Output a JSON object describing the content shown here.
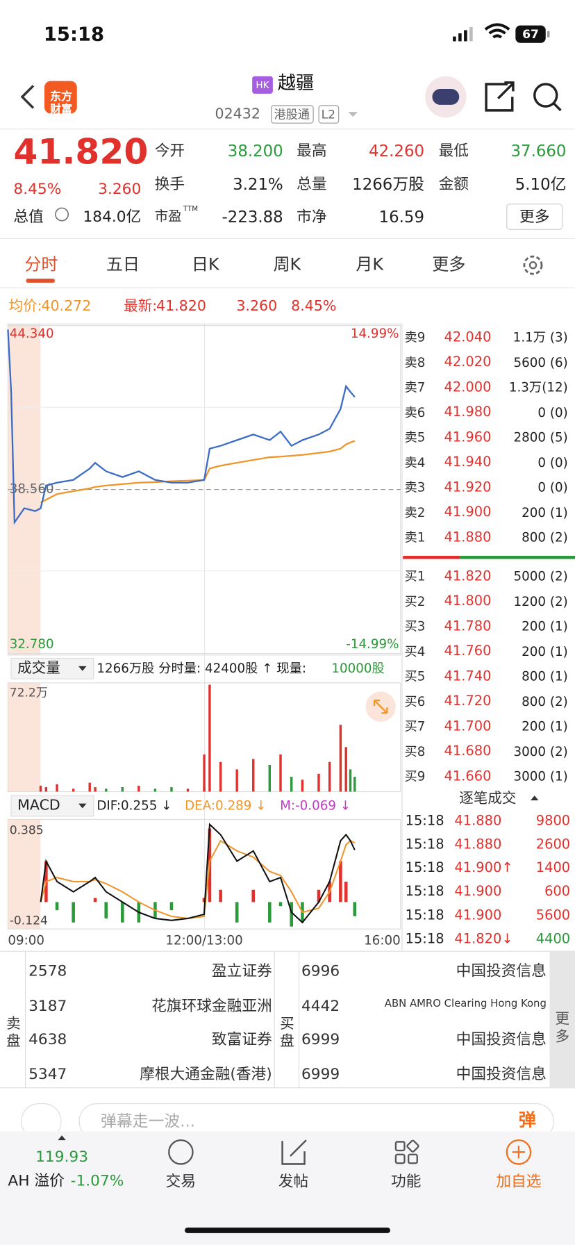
{
  "status_bar": {
    "time": "15:18",
    "battery": "67"
  },
  "header": {
    "logo": "东方财富",
    "badge": "HK",
    "name": "越疆",
    "code": "02432",
    "tags": [
      "港股通",
      "L2"
    ]
  },
  "quote": {
    "price": "41.820",
    "change_pct": "8.45%",
    "change": "3.260",
    "market_cap_label": "总值",
    "market_cap": "184.0亿",
    "fields": [
      {
        "label": "今开",
        "value": "38.200",
        "color": "#2a9a3a"
      },
      {
        "label": "最高",
        "value": "42.260",
        "color": "#e0312d"
      },
      {
        "label": "最低",
        "value": "37.660",
        "color": "#2a9a3a"
      },
      {
        "label": "换手",
        "value": "3.21%",
        "color": "#222222"
      },
      {
        "label": "总量",
        "value": "1266万股",
        "color": "#222222"
      },
      {
        "label": "金额",
        "value": "5.10亿",
        "color": "#222222"
      },
      {
        "label": "市盈",
        "sup": "TTM",
        "value": "-223.88",
        "color": "#222222"
      },
      {
        "label": "市净",
        "value": "16.59",
        "color": "#222222"
      }
    ],
    "more": "更多"
  },
  "tabs": [
    "分时",
    "五日",
    "日K",
    "周K",
    "月K",
    "更多"
  ],
  "info": [
    {
      "text": "均价:",
      "color": "#f0952a"
    },
    {
      "text": "40.272",
      "color": "#f0952a"
    },
    {
      "text": "最新:",
      "color": "#e0312d"
    },
    {
      "text": "41.820",
      "color": "#e0312d"
    },
    {
      "text": "3.260",
      "color": "#e0312d"
    },
    {
      "text": "8.45%",
      "color": "#e0312d"
    }
  ],
  "volume_header": {
    "selector": "成交量",
    "text": "1266万股 分时量: 42400股 ↑ 现量:",
    "current": "10000股"
  },
  "macd_header": {
    "selector": "MACD",
    "dif": "DIF:0.255 ↓",
    "dea": "DEA:0.289 ↓",
    "m": "M:-0.069 ↓"
  },
  "order_book": {
    "asks": [
      [
        "卖9",
        "42.040",
        "1.1万 (3)"
      ],
      [
        "卖8",
        "42.020",
        "5600 (6)"
      ],
      [
        "卖7",
        "42.000",
        "1.3万(12)"
      ],
      [
        "卖6",
        "41.980",
        "0 (0)"
      ],
      [
        "卖5",
        "41.960",
        "2800 (5)"
      ],
      [
        "卖4",
        "41.940",
        "0 (0)"
      ],
      [
        "卖3",
        "41.920",
        "0 (0)"
      ],
      [
        "卖2",
        "41.900",
        "200 (1)"
      ],
      [
        "卖1",
        "41.880",
        "800 (2)"
      ]
    ],
    "bids": [
      [
        "买1",
        "41.820",
        "5000 (2)"
      ],
      [
        "买2",
        "41.800",
        "1200 (2)"
      ],
      [
        "买3",
        "41.780",
        "200 (1)"
      ],
      [
        "买4",
        "41.760",
        "200 (1)"
      ],
      [
        "买5",
        "41.740",
        "800 (1)"
      ],
      [
        "买6",
        "41.720",
        "800 (2)"
      ],
      [
        "买7",
        "41.700",
        "200 (1)"
      ],
      [
        "买8",
        "41.680",
        "3000 (2)"
      ],
      [
        "买9",
        "41.660",
        "3000 (1)"
      ]
    ]
  },
  "trades": {
    "title": "逐笔成交",
    "rows": [
      [
        "15:18",
        "41.880",
        "9800"
      ],
      [
        "15:18",
        "41.880",
        "2600"
      ],
      [
        "15:18",
        "41.900↑",
        "1400"
      ],
      [
        "15:18",
        "41.900",
        "600"
      ],
      [
        "15:18",
        "41.900",
        "5600"
      ],
      [
        "15:18",
        "41.820↓",
        "4400"
      ]
    ]
  },
  "brokers": {
    "sell_label": "卖盘",
    "buy_label": "买盘",
    "more": "更多",
    "sell": [
      [
        "2578",
        "盈立证券"
      ],
      [
        "3187",
        "花旗环球金融亚洲"
      ],
      [
        "4638",
        "致富证券"
      ],
      [
        "5347",
        "摩根大通金融(香港)"
      ]
    ],
    "buy": [
      [
        "6996",
        "中国投资信息"
      ],
      [
        "4442",
        "ABN AMRO Clearing Hong Kong"
      ],
      [
        "6999",
        "中国投资信息"
      ],
      [
        "6999",
        "中国投资信息"
      ]
    ]
  },
  "comment": {
    "placeholder": "弹幕走一波...",
    "button": "弹"
  },
  "bottom_nav": {
    "ah_price": "119.93",
    "ah_label": "AH 溢价",
    "ah_premium": "-1.07%",
    "items": [
      "交易",
      "发帖",
      "功能",
      "加自选"
    ]
  },
  "chart_data": [
    {
      "type": "line",
      "xlim": [
        "09:00",
        "16:00"
      ],
      "x": [
        "09:00",
        "09:03",
        "09:06",
        "09:15",
        "09:25",
        "09:30",
        "09:35",
        "09:45",
        "10:00",
        "10:15",
        "10:20",
        "10:30",
        "10:45",
        "11:00",
        "11:15",
        "11:30",
        "11:45",
        "12:00",
        "13:00",
        "13:05",
        "13:15",
        "13:30",
        "13:45",
        "14:00",
        "14:10",
        "14:20",
        "14:30",
        "14:45",
        "14:55",
        "15:05",
        "15:10",
        "15:14",
        "15:18"
      ],
      "ylim": [
        32.78,
        44.34
      ],
      "yticks": [
        {
          "value": 44.34,
          "label": "44.340"
        },
        {
          "value": 38.56,
          "label": "38.560"
        },
        {
          "value": 32.78,
          "label": "32.780"
        }
      ],
      "y2lim": [
        -14.99,
        14.99
      ],
      "y2ticks": [
        {
          "value": 14.99,
          "label": "14.99%"
        },
        {
          "value": -14.99,
          "label": "-14.99%"
        }
      ],
      "series": [
        {
          "color": "#3a6cc6",
          "values": [
            44.2,
            42.0,
            37.4,
            37.9,
            37.8,
            37.9,
            38.7,
            38.8,
            38.9,
            39.3,
            39.5,
            39.2,
            39.0,
            39.2,
            38.9,
            38.8,
            38.8,
            38.9,
            38.9,
            40.0,
            40.1,
            40.3,
            40.5,
            40.3,
            40.6,
            40.1,
            40.3,
            40.5,
            40.7,
            41.4,
            42.2,
            42.0,
            41.82
          ]
        },
        {
          "color": "#f0952a",
          "values": [
            null,
            null,
            null,
            null,
            null,
            38.1,
            38.2,
            38.4,
            38.5,
            38.6,
            38.65,
            38.7,
            38.75,
            38.8,
            38.82,
            38.85,
            38.87,
            38.9,
            38.9,
            39.3,
            39.4,
            39.5,
            39.6,
            39.7,
            39.72,
            39.75,
            39.78,
            39.85,
            39.9,
            40.0,
            40.15,
            40.22,
            40.272
          ]
        }
      ]
    },
    {
      "type": "bar",
      "ylim": [
        0,
        72.2
      ],
      "yticks": [
        {
          "value": 72.2,
          "label": "72.2万"
        }
      ],
      "colors": [
        "#e0312d",
        "#2a9a3a"
      ],
      "values": [
        null,
        null,
        null,
        null,
        null,
        4,
        3,
        5,
        2,
        6,
        3,
        2,
        3,
        4,
        2,
        3,
        2,
        3,
        25,
        72,
        20,
        15,
        22,
        18,
        25,
        10,
        8,
        12,
        20,
        45,
        30,
        15,
        10
      ]
    },
    {
      "type": "macd",
      "ylim": [
        -0.124,
        0.385
      ],
      "yticks": [
        0.385,
        -0.124
      ],
      "xticks": [
        "09:00",
        "12:00/13:00",
        "16:00"
      ],
      "colors": [
        "#e0312d",
        "#2a9a3a"
      ],
      "series": [
        {
          "color": "#111111",
          "values": [
            null,
            null,
            null,
            null,
            null,
            0.0,
            0.2,
            0.1,
            0.05,
            0.1,
            0.12,
            0.05,
            0.0,
            -0.05,
            -0.08,
            -0.09,
            -0.08,
            -0.06,
            -0.05,
            0.38,
            0.33,
            0.2,
            0.25,
            0.1,
            0.12,
            -0.05,
            -0.1,
            0.0,
            0.1,
            0.3,
            0.33,
            0.3,
            0.255
          ]
        },
        {
          "color": "#f0952a",
          "values": [
            null,
            null,
            null,
            null,
            null,
            0.0,
            0.1,
            0.12,
            0.1,
            0.1,
            0.11,
            0.09,
            0.05,
            0.0,
            -0.04,
            -0.07,
            -0.08,
            -0.07,
            -0.06,
            0.2,
            0.3,
            0.25,
            0.22,
            0.15,
            0.13,
            0.05,
            -0.05,
            -0.03,
            0.05,
            0.2,
            0.28,
            0.3,
            0.289
          ]
        },
        {
          "type": "bar",
          "values": [
            null,
            null,
            null,
            null,
            null,
            0,
            0.2,
            -0.04,
            -0.1,
            0,
            0.02,
            -0.08,
            -0.1,
            -0.1,
            -0.08,
            -0.04,
            0,
            0.02,
            0.02,
            0.36,
            0.06,
            -0.1,
            0.06,
            -0.1,
            -0.02,
            -0.12,
            -0.1,
            0.06,
            0.1,
            0.2,
            0.1,
            0,
            -0.069
          ]
        }
      ]
    }
  ]
}
